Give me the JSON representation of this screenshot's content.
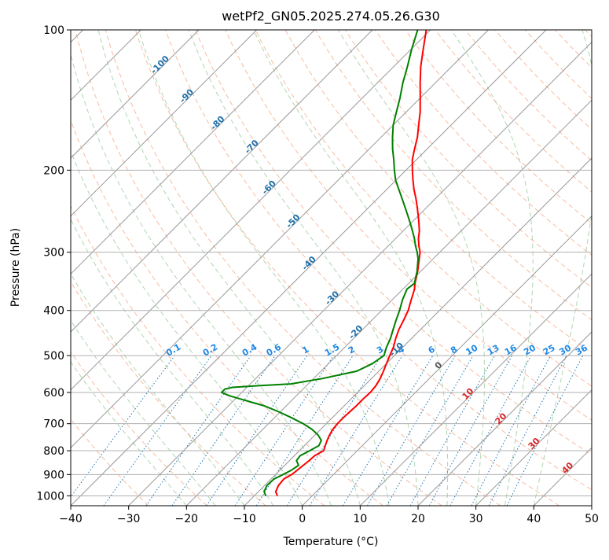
{
  "chart_data": {
    "type": "line",
    "subtype": "skew-T log-P diagram",
    "title": "wetPf2_GN05.2025.274.05.26.G30",
    "xlabel": "Temperature (°C)",
    "ylabel": "Pressure (hPa)",
    "xlim": [
      -40,
      50
    ],
    "ylim": [
      1050,
      100
    ],
    "y_scale": "log",
    "x_ticks": [
      -40,
      -30,
      -20,
      -10,
      0,
      10,
      20,
      30,
      40,
      50
    ],
    "x_tick_labels": [
      "−40",
      "−30",
      "−20",
      "−10",
      "0",
      "10",
      "20",
      "30",
      "40",
      "50"
    ],
    "y_ticks": [
      1000,
      900,
      800,
      700,
      600,
      500,
      400,
      300,
      200,
      100
    ],
    "y_tick_labels": [
      "1000",
      "900",
      "800",
      "700",
      "600",
      "500",
      "400",
      "300",
      "200",
      "100"
    ],
    "grid": true,
    "colors": {
      "temperature": "#ff0000",
      "dewpoint": "#008000",
      "isotherms": "#999999",
      "dry_adiabats": "#f4a582",
      "moist_adiabats": "#9ccc9c",
      "mixing_ratio": "#1f77b4",
      "left_isotherm_labels": "#1f6fa8",
      "right_isotherm_labels": "#d62728",
      "mixing_ratio_labels": "#1e88e5"
    },
    "series": [
      {
        "key": "temperature",
        "pressure": [
          1000,
          980,
          950,
          920,
          900,
          880,
          860,
          840,
          820,
          800,
          780,
          760,
          740,
          720,
          700,
          680,
          660,
          640,
          620,
          600,
          580,
          560,
          540,
          520,
          500,
          480,
          460,
          440,
          420,
          400,
          380,
          360,
          350,
          330,
          310,
          300,
          290,
          280,
          270,
          260,
          250,
          240,
          230,
          220,
          210,
          200,
          190,
          180,
          170,
          160,
          150,
          140,
          130,
          120,
          110,
          100
        ],
        "temperature": [
          -6.0,
          -7.0,
          -7.6,
          -7.8,
          -7.2,
          -7.0,
          -6.8,
          -6.6,
          -6.5,
          -5.8,
          -6.4,
          -7.0,
          -7.5,
          -7.9,
          -8.1,
          -8.1,
          -8.0,
          -7.9,
          -7.9,
          -7.8,
          -8.0,
          -8.5,
          -9.2,
          -10.0,
          -10.8,
          -11.6,
          -12.7,
          -13.7,
          -14.5,
          -15.4,
          -16.7,
          -18.0,
          -18.9,
          -20.5,
          -22.4,
          -23.4,
          -24.8,
          -26.1,
          -27.2,
          -28.6,
          -30.1,
          -31.7,
          -33.4,
          -35.3,
          -37.1,
          -38.9,
          -40.7,
          -42.2,
          -43.7,
          -45.6,
          -47.6,
          -50.0,
          -52.6,
          -55.3,
          -57.9,
          -60.7
        ]
      },
      {
        "key": "dewpoint",
        "pressure": [
          1000,
          980,
          950,
          920,
          900,
          880,
          860,
          840,
          820,
          800,
          780,
          760,
          740,
          720,
          700,
          680,
          660,
          640,
          630,
          620,
          610,
          600,
          590,
          585,
          580,
          575,
          560,
          540,
          520,
          500,
          480,
          460,
          440,
          420,
          400,
          380,
          360,
          350,
          330,
          310,
          300,
          290,
          280,
          270,
          260,
          250,
          240,
          230,
          220,
          210,
          200,
          190,
          180,
          170,
          160,
          150,
          140,
          130,
          120,
          110,
          100
        ],
        "temperature": [
          -8.0,
          -9.0,
          -9.6,
          -9.5,
          -8.7,
          -8.0,
          -7.6,
          -8.8,
          -9.0,
          -8.2,
          -7.5,
          -8.0,
          -9.5,
          -11.5,
          -14.0,
          -17.0,
          -20.3,
          -24.0,
          -26.5,
          -29.0,
          -31.5,
          -33.5,
          -33.5,
          -32.5,
          -28.0,
          -23.0,
          -18.5,
          -13.8,
          -12.4,
          -11.8,
          -12.8,
          -13.6,
          -14.7,
          -15.8,
          -16.9,
          -18.2,
          -19.3,
          -19.0,
          -20.6,
          -22.6,
          -23.9,
          -25.4,
          -26.8,
          -28.4,
          -30.1,
          -31.9,
          -33.8,
          -35.8,
          -37.9,
          -40.1,
          -42.0,
          -43.9,
          -46.0,
          -48.0,
          -50.0,
          -51.7,
          -53.5,
          -55.6,
          -57.6,
          -59.9,
          -62.2
        ]
      }
    ],
    "isotherm_labels_left": [
      "-100",
      "-90",
      "-80",
      "-70",
      "-60",
      "-50",
      "-40",
      "-30",
      "-20",
      "-10"
    ],
    "isotherm_labels_right": [
      "0",
      "10",
      "20",
      "30",
      "40"
    ],
    "mixing_ratio_labels": [
      "0.1",
      "0.2",
      "0.4",
      "0.6",
      "1",
      "1.5",
      "2",
      "3",
      "4",
      "6",
      "8",
      "10",
      "13",
      "16",
      "20",
      "25",
      "30",
      "36"
    ]
  }
}
